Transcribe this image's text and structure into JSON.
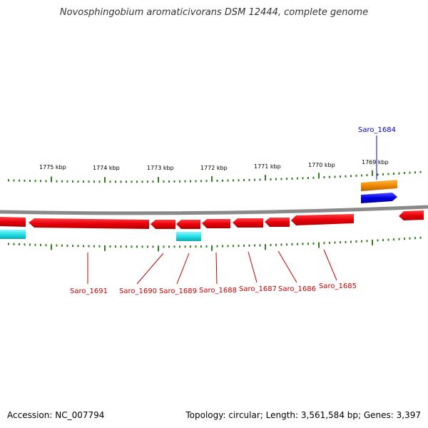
{
  "title": "Novosphingobium aromaticivorans DSM 12444, complete genome",
  "accession_label": "Accession: NC_007794",
  "summary": "Topology: circular; Length: 3,561,584 bp; Genes: 3,397",
  "colors": {
    "backbone": "#8a8a8a",
    "tick": "#2e7d1f",
    "gene_red": "#e8000b",
    "gene_cyan": "#22e0e8",
    "gene_orange": "#f08a00",
    "gene_blue": "#0000e0",
    "label_red": "#c00000",
    "label_blue": "#0000c0"
  },
  "diagram": {
    "scale_labels": [
      "1775 kbp",
      "1774 kbp",
      "1773 kbp",
      "1772 kbp",
      "1771 kbp",
      "1770 kbp",
      "1769 kbp"
    ],
    "genes": [
      {
        "label": "Saro_1684",
        "color": "blue"
      },
      {
        "label": "Saro_1685",
        "color": "red"
      },
      {
        "label": "Saro_1686",
        "color": "red"
      },
      {
        "label": "Saro_1687",
        "color": "red"
      },
      {
        "label": "Saro_1688",
        "color": "red"
      },
      {
        "label": "Saro_1689",
        "color": "red"
      },
      {
        "label": "Saro_1690",
        "color": "red"
      },
      {
        "label": "Saro_1691",
        "color": "red"
      }
    ]
  }
}
